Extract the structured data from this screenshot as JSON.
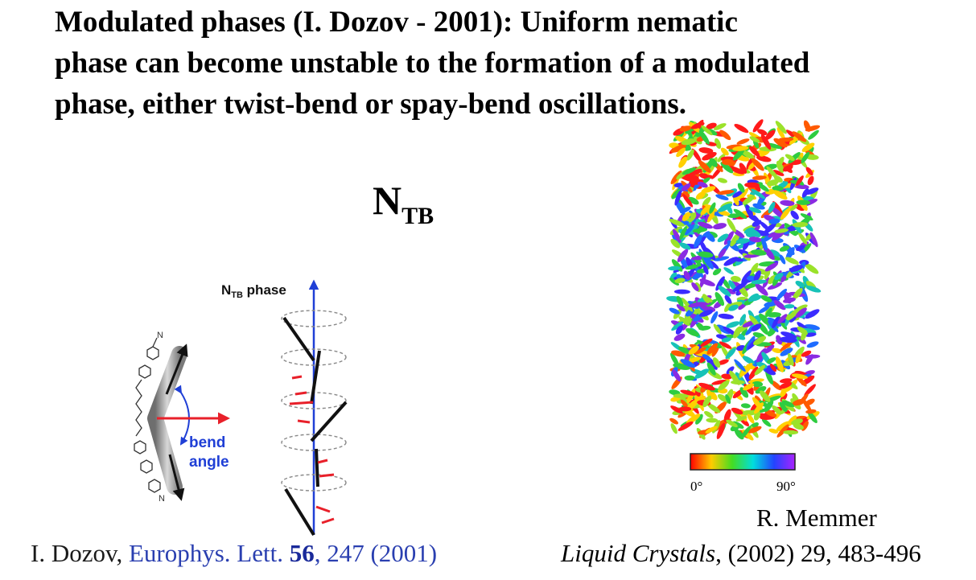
{
  "title": {
    "line1": "Modulated phases (I. Dozov - 2001): Uniform nematic",
    "line2": "phase can become unstable to the formation of a modulated",
    "line3": "phase, either twist-bend or spay-bend oscillations."
  },
  "ntb_label": {
    "main": "N",
    "sub": "TB"
  },
  "figure_left": {
    "phase_label": "N",
    "phase_label_sub": "TB",
    "phase_label_suffix": " phase",
    "bend_label_1": "bend",
    "bend_label_2": "angle",
    "nitrile_label": "N"
  },
  "figure_right": {
    "colorbar_min": "0°",
    "colorbar_max": "90°"
  },
  "citation_left": {
    "author": "I. Dozov, ",
    "journal": "Europhys. Lett. ",
    "volume": "56",
    "rest": ", 247 (2001)"
  },
  "citation_right": {
    "author": "R. Memmer",
    "journal": "Liquid Crystals",
    "rest": ", (2002) 29, 483-496"
  },
  "colors": {
    "blue_axis": "#1f3fd6",
    "red_arrow": "#e8202a",
    "bend_text": "#1f3fd6",
    "link_blue": "#2a3fb0"
  }
}
